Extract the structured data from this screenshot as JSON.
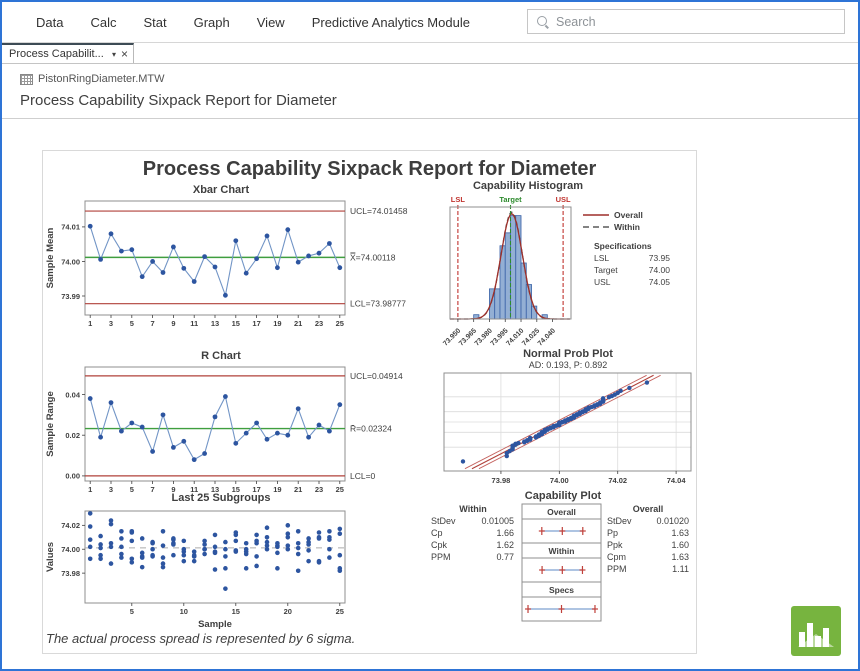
{
  "menu": {
    "items": [
      "Data",
      "Calc",
      "Stat",
      "Graph",
      "View",
      "Predictive Analytics Module"
    ],
    "search_placeholder": "Search"
  },
  "tab": {
    "label": "Process Capabilit...",
    "caret": "▾",
    "close": "×"
  },
  "worksheet": {
    "name": "PistonRingDiameter.MTW"
  },
  "output_heading": "Process Capability Sixpack Report for Diameter",
  "report": {
    "title": "Process Capability Sixpack Report for Diameter",
    "footer": "The actual process spread is represented by 6 sigma."
  },
  "colors": {
    "accent_blue": "#2e74d6",
    "text": "#3f3f3f",
    "frame": "#8f8f8f",
    "grid": "#dcdcdc",
    "limit_red": "#b0413a",
    "center_green": "#3f9e3f",
    "point_blue": "#2d55a0",
    "connect_blue": "#7295c6",
    "bar_fill": "#93afd4",
    "bar_stroke": "#3a62a7",
    "overall_curve": "#9e2f2a",
    "within_curve": "#5a5a5a",
    "spec_red": "#c0342f",
    "target_green": "#2e8b2e",
    "band_red": "#c4625e",
    "interval_blue": "#7da0d0",
    "plus_red": "#c0403a",
    "logo_green": "#77b43f"
  },
  "chart_data": [
    {
      "id": "xbar",
      "type": "line",
      "title": "Xbar Chart",
      "ylabel": "Sample Mean",
      "x": [
        1,
        2,
        3,
        4,
        5,
        6,
        7,
        8,
        9,
        10,
        11,
        12,
        13,
        14,
        15,
        16,
        17,
        18,
        19,
        20,
        21,
        22,
        23,
        24,
        25
      ],
      "values": [
        74.0102,
        74.0006,
        74.008,
        74.003,
        74.0034,
        73.9956,
        74.0,
        73.9968,
        74.0042,
        73.998,
        73.9942,
        74.0014,
        73.9984,
        73.9902,
        74.006,
        73.9966,
        74.0008,
        74.0074,
        73.9982,
        74.0092,
        73.9998,
        74.0016,
        74.0024,
        74.0052,
        73.9982
      ],
      "center": 74.00118,
      "ucl": 74.01458,
      "lcl": 73.98777,
      "labels": {
        "ucl": "UCL=74.01458",
        "center": "X̿=74.00118",
        "lcl": "LCL=73.98777"
      },
      "yticks": [
        73.99,
        74.0,
        74.01
      ],
      "ytick_decimals": 2,
      "xticks": [
        1,
        3,
        5,
        7,
        9,
        11,
        13,
        15,
        17,
        19,
        21,
        23,
        25
      ],
      "ylim": [
        73.9845,
        74.0175
      ]
    },
    {
      "id": "hist",
      "type": "bar",
      "title": "Capability Histogram",
      "bin_width": 0.005,
      "bin_centers": [
        73.9675,
        73.9825,
        73.9875,
        73.9925,
        73.9975,
        74.0025,
        74.0075,
        74.0125,
        74.0175,
        74.0225,
        74.0325
      ],
      "counts": [
        1,
        7,
        7,
        17,
        20,
        24,
        24,
        13,
        8,
        3,
        1
      ],
      "xticks": [
        73.95,
        73.965,
        73.98,
        73.995,
        74.01,
        74.025,
        74.04
      ],
      "xlim": [
        73.9425,
        74.0575
      ],
      "n": 125,
      "lsl": 73.95,
      "target": 74.0,
      "usl": 74.05,
      "spec_line_labels": {
        "lsl": "LSL",
        "target": "Target",
        "usl": "USL"
      },
      "legend": [
        {
          "label": "Overall",
          "style": "solid"
        },
        {
          "label": "Within",
          "style": "dashed"
        }
      ],
      "specifications": {
        "heading": "Specifications",
        "rows": [
          [
            "LSL",
            "73.95"
          ],
          [
            "Target",
            "74.00"
          ],
          [
            "USL",
            "74.05"
          ]
        ]
      },
      "overall_mean": 74.00118,
      "overall_stdev": 0.0102,
      "within_stdev": 0.01005
    },
    {
      "id": "r",
      "type": "line",
      "title": "R Chart",
      "ylabel": "Sample Range",
      "x": [
        1,
        2,
        3,
        4,
        5,
        6,
        7,
        8,
        9,
        10,
        11,
        12,
        13,
        14,
        15,
        16,
        17,
        18,
        19,
        20,
        21,
        22,
        23,
        24,
        25
      ],
      "values": [
        0.038,
        0.019,
        0.036,
        0.022,
        0.026,
        0.024,
        0.012,
        0.03,
        0.014,
        0.017,
        0.008,
        0.011,
        0.029,
        0.039,
        0.016,
        0.021,
        0.026,
        0.018,
        0.021,
        0.02,
        0.033,
        0.019,
        0.025,
        0.022,
        0.035
      ],
      "center": 0.02324,
      "ucl": 0.04914,
      "lcl": 0,
      "labels": {
        "ucl": "UCL=0.04914",
        "center": "R̄=0.02324",
        "lcl": "LCL=0"
      },
      "yticks": [
        0.0,
        0.02,
        0.04
      ],
      "ytick_decimals": 2,
      "xticks": [
        1,
        3,
        5,
        7,
        9,
        11,
        13,
        15,
        17,
        19,
        21,
        23,
        25
      ],
      "ylim": [
        -0.0025,
        0.0535
      ]
    },
    {
      "id": "prob",
      "type": "scatter",
      "title": "Normal Prob Plot",
      "subtitle": "AD: 0.193, P: 0.892",
      "stats": {
        "AD": 0.193,
        "P": 0.892
      },
      "xticks": [
        73.98,
        74.0,
        74.02,
        74.04
      ],
      "xtick_decimals": 2,
      "xlim": [
        73.9605,
        74.0451
      ],
      "mean": 74.00118,
      "stdev": 0.0102
    },
    {
      "id": "last25",
      "type": "scatter",
      "title": "Last 25 Subgroups",
      "xlabel": "Sample",
      "ylabel": "Values",
      "xticks": [
        5,
        10,
        15,
        20,
        25
      ],
      "yticks": [
        73.98,
        74.0,
        74.02
      ],
      "ytick_decimals": 2,
      "ylim": [
        73.955,
        74.032
      ],
      "mean": 74.00118,
      "subgroups": [
        [
          74.03,
          74.002,
          74.019,
          73.992,
          74.008
        ],
        [
          73.995,
          73.992,
          74.001,
          74.011,
          74.004
        ],
        [
          73.988,
          74.024,
          74.021,
          74.005,
          74.002
        ],
        [
          74.002,
          73.996,
          73.993,
          74.015,
          74.009
        ],
        [
          73.992,
          74.007,
          74.015,
          73.989,
          74.014
        ],
        [
          74.009,
          73.994,
          73.997,
          73.985,
          73.993
        ],
        [
          73.995,
          74.006,
          73.994,
          74.0,
          74.005
        ],
        [
          73.985,
          74.003,
          73.993,
          74.015,
          73.988
        ],
        [
          74.008,
          73.995,
          74.009,
          74.005,
          74.004
        ],
        [
          73.998,
          74.0,
          73.99,
          74.007,
          73.995
        ],
        [
          73.994,
          73.998,
          73.994,
          73.995,
          73.99
        ],
        [
          74.004,
          74.0,
          74.007,
          74.0,
          73.996
        ],
        [
          73.983,
          74.002,
          73.998,
          73.997,
          74.012
        ],
        [
          74.006,
          73.967,
          73.994,
          74.0,
          73.984
        ],
        [
          74.012,
          74.014,
          73.998,
          73.999,
          74.007
        ],
        [
          74.0,
          73.984,
          74.005,
          73.998,
          73.996
        ],
        [
          73.994,
          74.012,
          73.986,
          74.005,
          74.007
        ],
        [
          74.006,
          74.01,
          74.018,
          74.003,
          74.0
        ],
        [
          73.984,
          74.002,
          74.003,
          74.005,
          73.997
        ],
        [
          74.0,
          74.01,
          74.013,
          74.02,
          74.003
        ],
        [
          73.982,
          74.001,
          74.015,
          74.005,
          73.996
        ],
        [
          74.004,
          73.999,
          73.99,
          74.006,
          74.009
        ],
        [
          74.01,
          73.989,
          73.99,
          74.009,
          74.014
        ],
        [
          74.015,
          74.008,
          73.993,
          74.0,
          74.01
        ],
        [
          73.982,
          73.984,
          73.995,
          74.017,
          74.013
        ]
      ]
    },
    {
      "id": "cap",
      "type": "table",
      "title": "Capability Plot",
      "within": {
        "heading": "Within",
        "rows": [
          [
            "StDev",
            "0.01005"
          ],
          [
            "Cp",
            "1.66"
          ],
          [
            "Cpk",
            "1.62"
          ],
          [
            "PPM",
            "0.77"
          ]
        ]
      },
      "overall": {
        "heading": "Overall",
        "rows": [
          [
            "StDev",
            "0.01020"
          ],
          [
            "Pp",
            "1.63"
          ],
          [
            "Ppk",
            "1.60"
          ],
          [
            "Cpm",
            "1.63"
          ],
          [
            "PPM",
            "1.11"
          ]
        ]
      },
      "intervals": [
        {
          "label": "Overall",
          "low": 73.9706,
          "mid": 74.0012,
          "high": 74.0318
        },
        {
          "label": "Within",
          "low": 73.971,
          "mid": 74.0012,
          "high": 74.0313
        },
        {
          "label": "Specs",
          "low": 73.95,
          "mid": 74.0,
          "high": 74.05
        }
      ],
      "xlim": [
        73.944,
        74.056
      ]
    }
  ]
}
